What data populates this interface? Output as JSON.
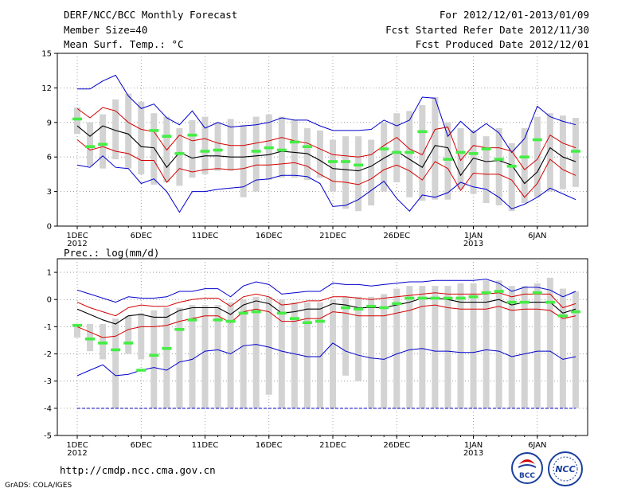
{
  "header": {
    "title": "DERF/NCC/BCC Monthly Forecast",
    "member_size": "Member Size=40",
    "variable": "Mean Surf. Temp.: °C",
    "period": "For 2012/12/01-2013/01/09",
    "fcst_started": "Fcst Started Refer Date 2012/11/30",
    "fcst_produced": "Fcst Produced Date 2012/12/01"
  },
  "footer": {
    "url": "http://cmdp.ncc.cma.gov.cn",
    "grads": "GrADS: COLA/IGES",
    "logo1_text": "BCC",
    "logo2_text": "NCC"
  },
  "colors": {
    "envelope": "#0000cc",
    "spread": "#d40000",
    "mean": "#000000",
    "box": "#d3d3d3",
    "obs": "#44ee44",
    "grid": "#888888"
  },
  "chart_data": [
    {
      "type": "box-line",
      "title": "Mean Surf. Temp.: °C",
      "ylim": [
        0,
        15
      ],
      "yticks": [
        "0",
        "3",
        "6",
        "9",
        "12",
        "15"
      ],
      "xlabels": [
        {
          "day": 1,
          "label": "1DEC",
          "sub": "2012"
        },
        {
          "day": 6,
          "label": "6DEC",
          "sub": ""
        },
        {
          "day": 11,
          "label": "11DEC",
          "sub": ""
        },
        {
          "day": 16,
          "label": "16DEC",
          "sub": ""
        },
        {
          "day": 21,
          "label": "21DEC",
          "sub": ""
        },
        {
          "day": 26,
          "label": "26DEC",
          "sub": ""
        },
        {
          "day": 32,
          "label": "1JAN",
          "sub": "2013"
        },
        {
          "day": 37,
          "label": "6JAN",
          "sub": ""
        }
      ],
      "box_low": [
        8.0,
        5.2,
        5.0,
        5.8,
        5.0,
        4.5,
        3.6,
        3.8,
        3.5,
        4.2,
        4.5,
        4.8,
        4.8,
        2.5,
        3.0,
        4.0,
        4.2,
        4.2,
        4.0,
        4.2,
        3.0,
        1.5,
        1.3,
        1.8,
        3.0,
        3.8,
        2.5,
        2.2,
        2.3,
        2.3,
        3.2,
        2.8,
        2.0,
        1.8,
        1.3,
        2.0,
        2.5,
        3.0,
        3.2,
        3.4
      ],
      "box_high": [
        10.3,
        9.0,
        9.7,
        11.0,
        11.5,
        10.8,
        9.8,
        9.5,
        8.5,
        9.2,
        9.5,
        9.0,
        9.3,
        8.8,
        9.5,
        9.7,
        9.5,
        9.2,
        8.5,
        8.3,
        7.5,
        7.8,
        7.8,
        7.5,
        9.0,
        9.8,
        10.0,
        10.5,
        11.2,
        9.0,
        8.5,
        8.3,
        7.8,
        8.5,
        7.2,
        8.5,
        9.5,
        9.8,
        9.6,
        9.4
      ],
      "mean": [
        8.7,
        7.8,
        8.7,
        8.3,
        8.0,
        6.9,
        6.8,
        5.1,
        6.4,
        5.9,
        6.1,
        6.1,
        6.0,
        6.0,
        6.1,
        6.2,
        6.5,
        6.4,
        6.3,
        5.7,
        5.0,
        4.9,
        4.8,
        5.2,
        5.9,
        6.5,
        5.8,
        5.1,
        7.0,
        6.8,
        4.4,
        5.9,
        5.6,
        5.7,
        5.3,
        3.7,
        4.7,
        6.8,
        6.0,
        5.6
      ],
      "sd_upper": [
        10.2,
        9.4,
        10.3,
        10.0,
        9.0,
        8.4,
        8.2,
        6.6,
        7.9,
        7.4,
        7.6,
        7.2,
        7.0,
        7.0,
        7.2,
        7.4,
        7.7,
        7.4,
        7.2,
        6.7,
        6.2,
        6.1,
        6.0,
        6.2,
        7.0,
        7.7,
        6.7,
        6.2,
        8.4,
        8.6,
        5.7,
        7.0,
        6.8,
        6.8,
        6.5,
        4.9,
        5.8,
        7.9,
        7.2,
        6.8
      ],
      "sd_lower": [
        7.5,
        6.6,
        6.9,
        6.5,
        6.3,
        5.7,
        5.7,
        3.8,
        5.0,
        4.7,
        4.9,
        5.0,
        4.9,
        5.0,
        5.3,
        5.3,
        5.4,
        5.5,
        5.2,
        4.5,
        3.9,
        3.8,
        3.6,
        4.1,
        4.9,
        5.3,
        4.8,
        4.0,
        5.6,
        5.0,
        3.1,
        4.6,
        4.5,
        4.5,
        4.0,
        2.5,
        3.7,
        5.8,
        4.9,
        4.4
      ],
      "env_upper": [
        11.9,
        11.9,
        12.6,
        13.1,
        11.3,
        10.2,
        10.6,
        9.4,
        8.8,
        10.0,
        8.5,
        9.0,
        8.6,
        8.7,
        8.8,
        9.0,
        9.4,
        9.2,
        9.2,
        8.7,
        8.3,
        8.3,
        8.3,
        8.4,
        9.2,
        8.7,
        9.2,
        11.2,
        11.1,
        7.8,
        9.1,
        8.1,
        8.9,
        8.1,
        6.4,
        7.6,
        10.4,
        9.5,
        9.1,
        8.8
      ],
      "env_lower": [
        5.3,
        5.1,
        6.1,
        5.1,
        5.0,
        3.7,
        4.1,
        3.0,
        1.2,
        3.0,
        3.0,
        3.2,
        3.3,
        3.4,
        4.0,
        4.1,
        4.4,
        4.4,
        4.3,
        3.7,
        1.7,
        1.8,
        2.3,
        3.1,
        3.9,
        2.4,
        1.3,
        2.7,
        2.5,
        2.9,
        3.8,
        3.4,
        3.2,
        2.5,
        1.5,
        1.9,
        2.5,
        3.3,
        2.8,
        2.3
      ],
      "obs": [
        9.3,
        6.9,
        7.1,
        null,
        null,
        null,
        8.3,
        7.8,
        6.3,
        7.9,
        6.5,
        6.6,
        null,
        null,
        6.5,
        6.8,
        6.6,
        7.3,
        6.9,
        null,
        5.6,
        5.6,
        5.3,
        null,
        6.7,
        6.4,
        6.4,
        8.2,
        null,
        5.8,
        6.4,
        6.3,
        6.7,
        5.8,
        5.2,
        6.0,
        7.5,
        null,
        null,
        6.5
      ]
    },
    {
      "type": "box-line",
      "title": "Prec.: log(mm/d)",
      "ylim": [
        -5,
        1.5
      ],
      "yticks": [
        "-5",
        "-4",
        "-3",
        "-2",
        "-1",
        "0",
        "1"
      ],
      "xlabels": [
        {
          "day": 1,
          "label": "1DEC",
          "sub": "2012"
        },
        {
          "day": 6,
          "label": "6DEC",
          "sub": ""
        },
        {
          "day": 11,
          "label": "11DEC",
          "sub": ""
        },
        {
          "day": 16,
          "label": "16DEC",
          "sub": ""
        },
        {
          "day": 21,
          "label": "21DEC",
          "sub": ""
        },
        {
          "day": 26,
          "label": "26DEC",
          "sub": ""
        },
        {
          "day": 32,
          "label": "1JAN",
          "sub": "2013"
        },
        {
          "day": 37,
          "label": "6JAN",
          "sub": ""
        }
      ],
      "box_low": [
        -1.4,
        -1.9,
        -2.2,
        -4.0,
        -2.0,
        -2.2,
        -4.0,
        -4.0,
        -4.0,
        -4.0,
        -4.0,
        -4.0,
        -4.0,
        -4.0,
        -4.0,
        -3.5,
        -4.0,
        -4.0,
        -4.0,
        -4.0,
        -4.0,
        -2.8,
        -3.0,
        -4.0,
        -4.0,
        -4.0,
        -4.0,
        -4.0,
        -4.0,
        -4.0,
        -4.0,
        -4.0,
        -4.0,
        -4.0,
        -4.0,
        -4.0,
        -4.0,
        -4.0,
        -4.0,
        -4.0
      ],
      "box_high": [
        -0.9,
        -0.9,
        -0.9,
        -0.7,
        -0.6,
        -0.5,
        -0.4,
        -0.3,
        -0.3,
        -0.2,
        -0.2,
        -0.2,
        -0.1,
        0.0,
        0.1,
        0.1,
        0.0,
        -0.1,
        -0.1,
        -0.1,
        0.0,
        0.1,
        0.1,
        0.1,
        0.2,
        0.4,
        0.5,
        0.5,
        0.5,
        0.5,
        0.6,
        0.6,
        0.7,
        0.7,
        0.5,
        0.5,
        0.6,
        0.8,
        0.4,
        0.3
      ],
      "mean": [
        -0.35,
        -0.55,
        -0.75,
        -0.9,
        -0.6,
        -0.55,
        -0.65,
        -0.65,
        -0.4,
        -0.3,
        -0.3,
        -0.3,
        -0.55,
        -0.2,
        -0.05,
        -0.15,
        -0.5,
        -0.45,
        -0.35,
        -0.35,
        -0.15,
        -0.2,
        -0.3,
        -0.3,
        -0.3,
        -0.2,
        -0.1,
        0.05,
        0.05,
        0.0,
        -0.1,
        -0.1,
        -0.1,
        0.0,
        -0.2,
        -0.1,
        -0.1,
        -0.1,
        -0.5,
        -0.35
      ],
      "sd_upper": [
        -0.1,
        -0.3,
        -0.45,
        -0.6,
        -0.3,
        -0.2,
        -0.25,
        -0.25,
        -0.1,
        0.0,
        0.05,
        0.05,
        -0.25,
        0.1,
        0.2,
        0.1,
        -0.2,
        -0.15,
        -0.05,
        -0.05,
        0.1,
        0.1,
        0.05,
        0.0,
        0.05,
        0.1,
        0.15,
        0.2,
        0.25,
        0.2,
        0.2,
        0.2,
        0.2,
        0.25,
        0.1,
        0.2,
        0.2,
        0.2,
        -0.3,
        -0.15
      ],
      "sd_lower": [
        -1.0,
        -1.2,
        -1.4,
        -1.35,
        -1.1,
        -1.0,
        -1.0,
        -0.95,
        -0.8,
        -0.7,
        -0.6,
        -0.6,
        -0.85,
        -0.45,
        -0.35,
        -0.45,
        -0.8,
        -0.8,
        -0.7,
        -0.7,
        -0.45,
        -0.5,
        -0.6,
        -0.6,
        -0.6,
        -0.5,
        -0.4,
        -0.25,
        -0.2,
        -0.3,
        -0.35,
        -0.35,
        -0.35,
        -0.25,
        -0.4,
        -0.35,
        -0.35,
        -0.4,
        -0.7,
        -0.6
      ],
      "env_upper": [
        0.35,
        0.2,
        0.05,
        -0.1,
        0.1,
        0.05,
        0.05,
        0.1,
        0.3,
        0.3,
        0.4,
        0.4,
        0.1,
        0.5,
        0.65,
        0.55,
        0.2,
        0.25,
        0.3,
        0.3,
        0.6,
        0.55,
        0.55,
        0.5,
        0.55,
        0.6,
        0.65,
        0.65,
        0.7,
        0.7,
        0.7,
        0.7,
        0.75,
        0.6,
        0.3,
        0.45,
        0.45,
        0.35,
        0.1,
        0.3
      ],
      "env_lower": [
        -2.8,
        -2.6,
        -2.4,
        -2.8,
        -2.75,
        -2.6,
        -2.5,
        -2.6,
        -2.3,
        -2.2,
        -1.9,
        -1.85,
        -2.0,
        -1.7,
        -1.65,
        -1.75,
        -1.9,
        -2.0,
        -2.1,
        -2.1,
        -1.6,
        -1.9,
        -2.05,
        -2.15,
        -2.2,
        -2.0,
        -1.85,
        -1.8,
        -1.9,
        -1.9,
        -1.95,
        -1.95,
        -1.85,
        -1.9,
        -2.1,
        -2.0,
        -1.9,
        -1.9,
        -2.2,
        -2.1
      ],
      "sd_min": [
        -4.0,
        -4.0,
        -4.0,
        -4.0,
        -4.0,
        -4.0,
        -4.0,
        -4.0,
        -4.0,
        -4.0,
        -4.0,
        -4.0,
        -4.0,
        -4.0,
        -4.0,
        -4.0,
        -4.0,
        -4.0,
        -4.0,
        -4.0,
        -4.0,
        -4.0,
        -4.0,
        -4.0,
        -4.0,
        -4.0,
        -4.0,
        -4.0,
        -4.0,
        -4.0,
        -4.0,
        -4.0,
        -4.0,
        -4.0,
        -4.0,
        -4.0,
        -4.0,
        -4.0,
        -4.0,
        -4.0
      ],
      "obs": [
        -0.95,
        -1.45,
        -1.6,
        -1.85,
        -1.6,
        -2.6,
        -2.05,
        -1.8,
        -1.1,
        -0.75,
        null,
        -0.75,
        -0.8,
        -0.5,
        -0.45,
        null,
        -0.5,
        -0.7,
        -0.85,
        -0.8,
        null,
        -0.3,
        -0.35,
        -0.25,
        -0.3,
        -0.15,
        0.05,
        0.05,
        0.05,
        0.05,
        0.05,
        0.1,
        0.25,
        0.3,
        -0.1,
        -0.1,
        0.25,
        -0.1,
        -0.6,
        -0.45
      ]
    }
  ]
}
